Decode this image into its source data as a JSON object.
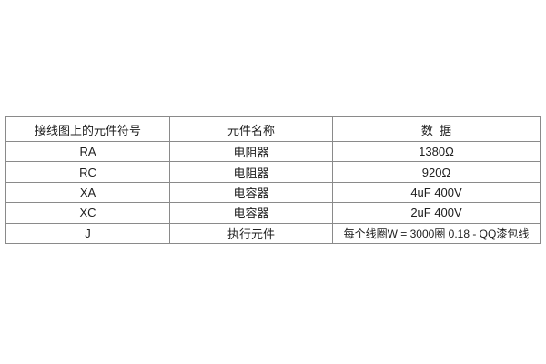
{
  "page": {
    "background_color": "#ffffff"
  },
  "table": {
    "colors": {
      "border": "#8a8a8a",
      "text": "#202020",
      "background": "#ffffff"
    },
    "headers": {
      "symbol": "接线图上的元件符号",
      "name": "元件名称",
      "data": "数  据"
    },
    "rows": [
      {
        "symbol": "RA",
        "name": "电阻器",
        "data": "1380Ω"
      },
      {
        "symbol": "RC",
        "name": "电阻器",
        "data": "920Ω"
      },
      {
        "symbol": "XA",
        "name": "电容器",
        "data": "4uF 400V"
      },
      {
        "symbol": "XC",
        "name": "电容器",
        "data": "2uF 400V"
      },
      {
        "symbol": "J",
        "name": "执行元件",
        "data": "每个线圈W = 3000圈 0.18 - QQ漆包线"
      }
    ]
  }
}
